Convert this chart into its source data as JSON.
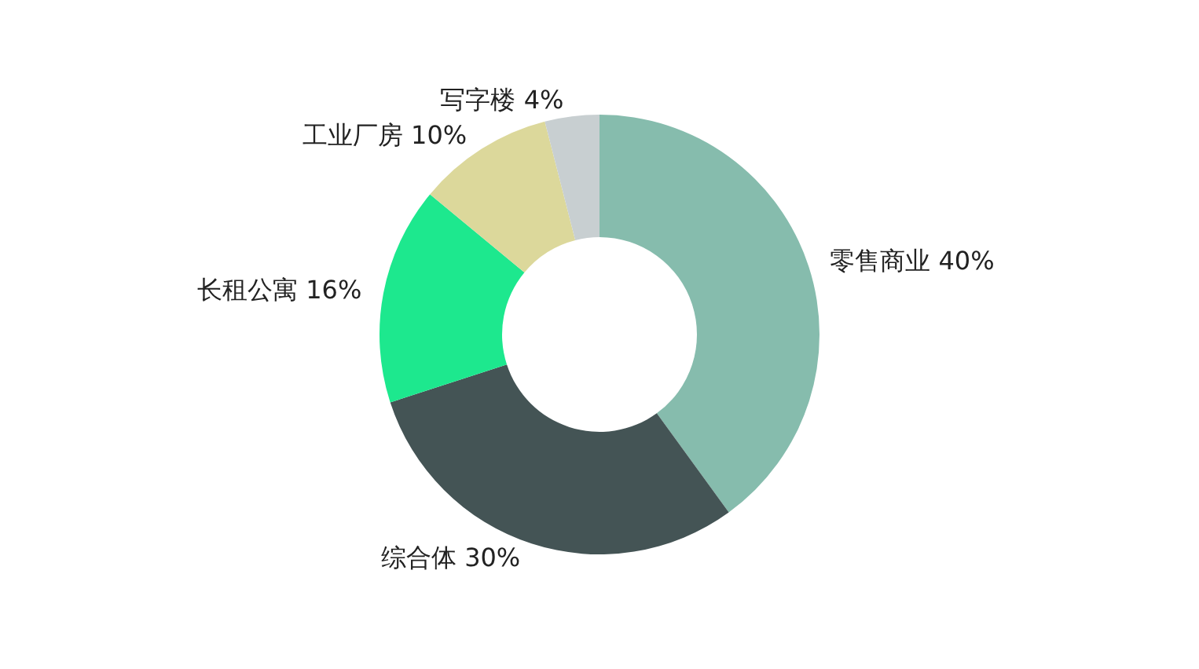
{
  "chart_data": {
    "type": "donut",
    "categories": [
      "零售商业",
      "综合体",
      "长租公寓",
      "工业厂房",
      "写字楼"
    ],
    "values": [
      40,
      30,
      16,
      10,
      4
    ],
    "value_labels": [
      "40%",
      "30%",
      "16%",
      "10%",
      "4%"
    ],
    "colors": [
      "#86bcad",
      "#445455",
      "#1de88e",
      "#dcd89b",
      "#c8cfd1"
    ],
    "legend": false
  }
}
